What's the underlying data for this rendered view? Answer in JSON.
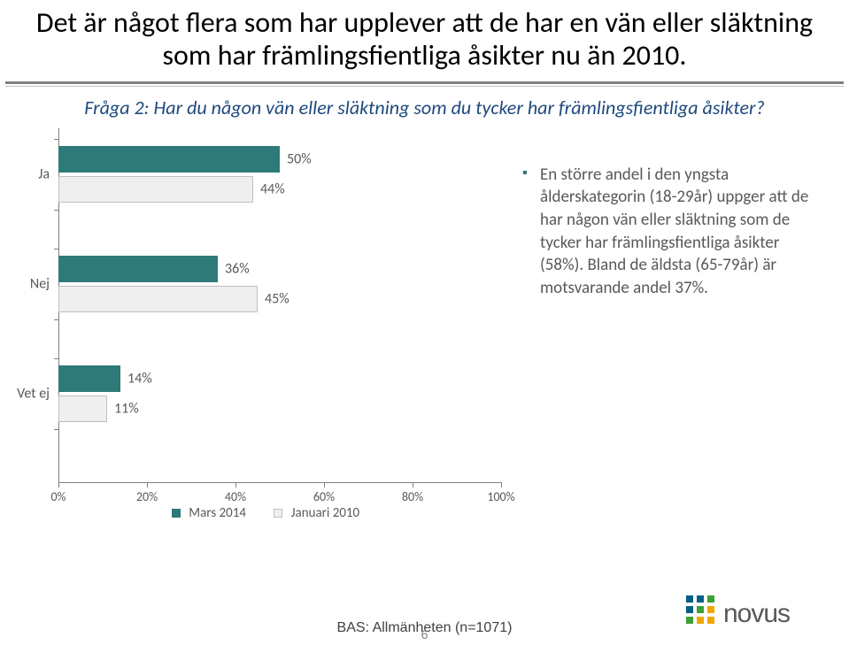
{
  "title": "Det är något flera som har upplever att de har en vän eller släktning som har främlingsfientliga åsikter nu än 2010.",
  "subtitle": "Fråga 2: Har du någon vän eller släktning som du tycker har främlingsfientliga åsikter?",
  "chart": {
    "type": "bar-horizontal-grouped",
    "xlim": [
      0,
      100
    ],
    "xtick_step": 20,
    "xtick_suffix": "%",
    "categories": [
      "Ja",
      "Nej",
      "Vet ej"
    ],
    "seriesA": {
      "label": "Mars  2014",
      "color": "#2d7a78",
      "values": [
        50,
        36,
        14
      ]
    },
    "seriesB": {
      "label": "Januari 2010",
      "color": "#efefef",
      "border": "#bfbfbf",
      "values": [
        44,
        45,
        11
      ]
    },
    "bar_label_suffix": "%",
    "label_fontsize": 16,
    "axis_color": "#808080",
    "text_color": "#595959",
    "background_color": "#ffffff"
  },
  "note": "En större andel i den yngsta ålderskategorin (18-29år) uppger att de har någon vän eller släktning som de tycker har främlingsfientliga åsikter (58%). Bland de äldsta (65-79år) är motsvarande andel 37%.",
  "footer": "BAS: Allmänheten (n=1071)",
  "page": "6",
  "logo": {
    "text": "novus",
    "dots": [
      "#005f86",
      "#3ba135",
      "#f0a800"
    ],
    "text_color": "#595959"
  }
}
